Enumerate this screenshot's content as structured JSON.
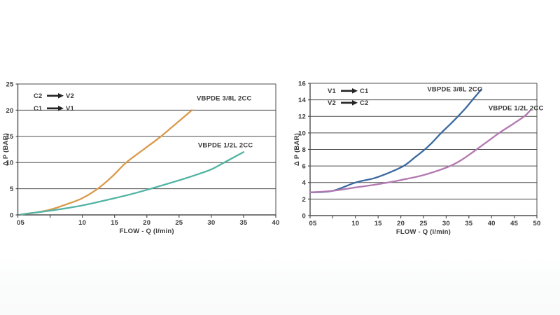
{
  "page": {
    "background": "#ffffff",
    "text_color": "#3a3a3a",
    "grid_color": "#4d4d4d",
    "arrow_color": "#242424"
  },
  "chart_data": [
    {
      "type": "line",
      "title": "",
      "xlabel": "FLOW - Q (l/min)",
      "ylabel": "Δ P (BAR)",
      "xlim": [
        0,
        40
      ],
      "ylim": [
        0,
        25
      ],
      "grid": "horizontal",
      "x_tick_step": 5,
      "x_tick_labels": {
        "0": "05",
        "10": "10",
        "15": "15",
        "20": "20",
        "25": "25",
        "30": "30",
        "35": "35",
        "40": "40"
      },
      "y_ticks": [
        0,
        5,
        10,
        15,
        20,
        25
      ],
      "legend_position": "top-left-inside",
      "legend": [
        {
          "from": "C2",
          "to": "V2"
        },
        {
          "from": "C1",
          "to": "V1"
        }
      ],
      "series": [
        {
          "name": "VBPDE 3/8L 2CC",
          "color": "#d99a4c",
          "points": [
            [
              0.5,
              0.1
            ],
            [
              3,
              0.5
            ],
            [
              5,
              1.0
            ],
            [
              7.5,
              2.0
            ],
            [
              10,
              3.2
            ],
            [
              12.4,
              5.0
            ],
            [
              14.6,
              7.3
            ],
            [
              16.8,
              10.0
            ],
            [
              19.5,
              12.5
            ],
            [
              22.2,
              15.0
            ],
            [
              24.6,
              17.5
            ],
            [
              27,
              20.0
            ]
          ],
          "label_pos": [
            32.0,
            22.3
          ]
        },
        {
          "name": "VBPDE 1/2L 2CC",
          "color": "#52b3a4",
          "points": [
            [
              0.5,
              0.1
            ],
            [
              5,
              0.8
            ],
            [
              10,
              1.8
            ],
            [
              15,
              3.2
            ],
            [
              18,
              4.1
            ],
            [
              20.6,
              5.0
            ],
            [
              25,
              6.6
            ],
            [
              28,
              7.8
            ],
            [
              30,
              8.7
            ],
            [
              32,
              10.0
            ],
            [
              35,
              12.0
            ]
          ],
          "label_pos": [
            32.2,
            13.3
          ]
        }
      ]
    },
    {
      "type": "line",
      "title": "",
      "xlabel": "FLOW - Q (l/min)",
      "ylabel": "Δ P (BAR)",
      "xlim": [
        0,
        50
      ],
      "ylim": [
        0,
        16
      ],
      "grid": "horizontal",
      "x_tick_step": 5,
      "x_tick_labels": {
        "0": "05",
        "10": "10",
        "15": "15",
        "20": "20",
        "25": "25",
        "30": "30",
        "35": "35",
        "40": "40",
        "45": "45",
        "50": "50"
      },
      "y_ticks": [
        0,
        2,
        4,
        6,
        8,
        10,
        12,
        14,
        16
      ],
      "legend_position": "top-left-inside",
      "legend": [
        {
          "from": "V1",
          "to": "C1"
        },
        {
          "from": "V2",
          "to": "C2"
        }
      ],
      "series": [
        {
          "name": "VBPDE 3/8L 2CC",
          "color": "#3a699e",
          "points": [
            [
              0,
              2.8
            ],
            [
              5,
              3.0
            ],
            [
              10,
              4.0
            ],
            [
              14,
              4.5
            ],
            [
              17,
              5.1
            ],
            [
              20.6,
              6.0
            ],
            [
              23,
              7.0
            ],
            [
              25.3,
              8.0
            ],
            [
              27.2,
              9.0
            ],
            [
              28.9,
              10.0
            ],
            [
              30.8,
              11.0
            ],
            [
              32.6,
              12.0
            ],
            [
              34.3,
              13.0
            ],
            [
              35.8,
              14.0
            ],
            [
              37.8,
              15.3
            ]
          ],
          "label_pos": [
            31.9,
            15.3
          ]
        },
        {
          "name": "VBPDE 1/2L 2CC",
          "color": "#b278b1",
          "points": [
            [
              0,
              2.8
            ],
            [
              5,
              3.0
            ],
            [
              10,
              3.4
            ],
            [
              15,
              3.8
            ],
            [
              20,
              4.3
            ],
            [
              25,
              4.9
            ],
            [
              30,
              5.8
            ],
            [
              33,
              6.6
            ],
            [
              36.7,
              8.0
            ],
            [
              39.2,
              9.0
            ],
            [
              41.7,
              10.0
            ],
            [
              44.5,
              11.0
            ],
            [
              47.2,
              12.0
            ],
            [
              48.5,
              12.7
            ]
          ],
          "label_pos": [
            45.4,
            13.0
          ]
        }
      ]
    }
  ]
}
